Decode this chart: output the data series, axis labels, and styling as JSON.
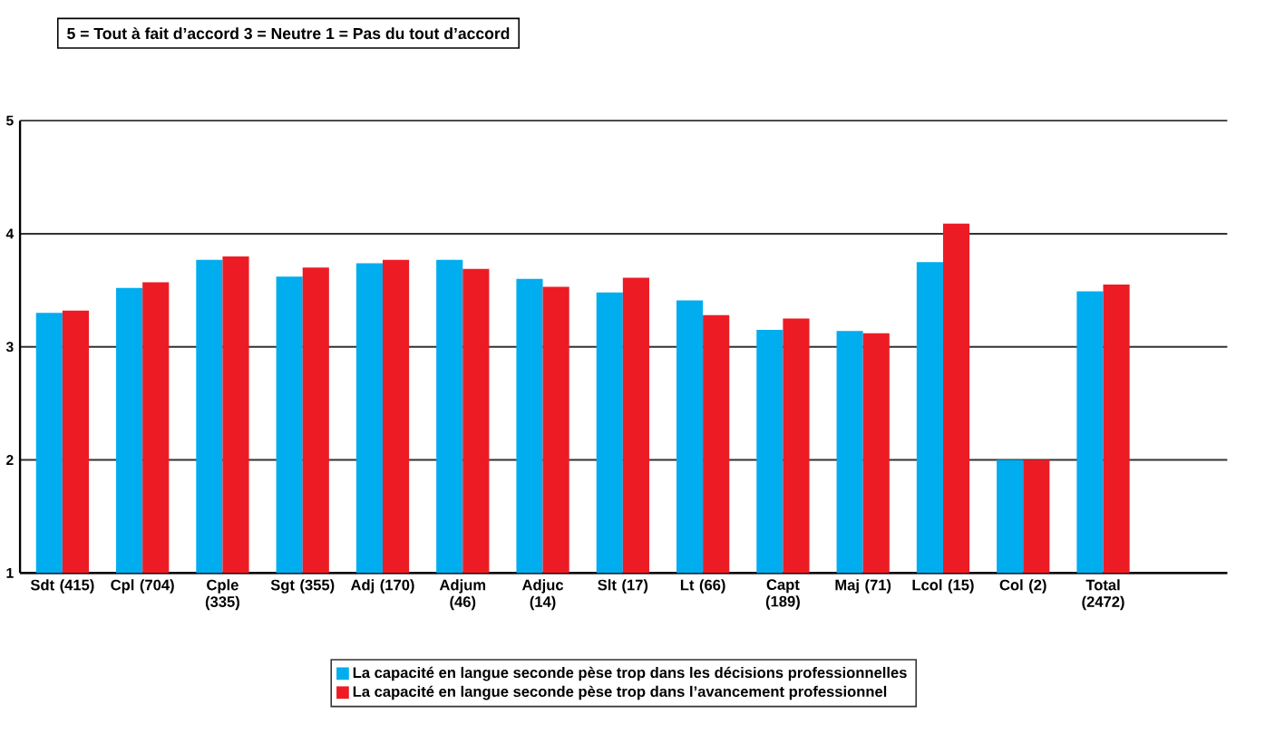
{
  "chart_data": {
    "type": "bar",
    "annotations": [
      "5 = Tout à fait d’accord  3 = Neutre  1 = Pas du tout d’accord"
    ],
    "categories": [
      "Sdt (415)",
      "Cpl (704)",
      "Cple (335)",
      "Sgt (355)",
      "Adj (170)",
      "Adjum (46)",
      "Adjuc (14)",
      "Slt (17)",
      "Lt (66)",
      "Capt (189)",
      "Maj (71)",
      "Lcol (15)",
      "Col (2)",
      "Total (2472)"
    ],
    "series": [
      {
        "name": "La capacité en langue seconde pèse trop dans les décisions professionnelles",
        "color": "#00adef",
        "values": [
          3.3,
          3.52,
          3.77,
          3.62,
          3.74,
          3.77,
          3.6,
          3.48,
          3.41,
          3.15,
          3.14,
          3.75,
          2.0,
          3.49
        ]
      },
      {
        "name": "La capacité en langue seconde pèse trop dans l’avancement professionnel",
        "color": "#ed1c24",
        "values": [
          3.32,
          3.57,
          3.8,
          3.7,
          3.77,
          3.69,
          3.53,
          3.61,
          3.28,
          3.25,
          3.12,
          4.09,
          2.0,
          3.55
        ]
      }
    ],
    "ylim": [
      1,
      5
    ],
    "yticks": [
      1,
      2,
      3,
      4,
      5
    ],
    "grid": "y",
    "legend": "bottom"
  }
}
